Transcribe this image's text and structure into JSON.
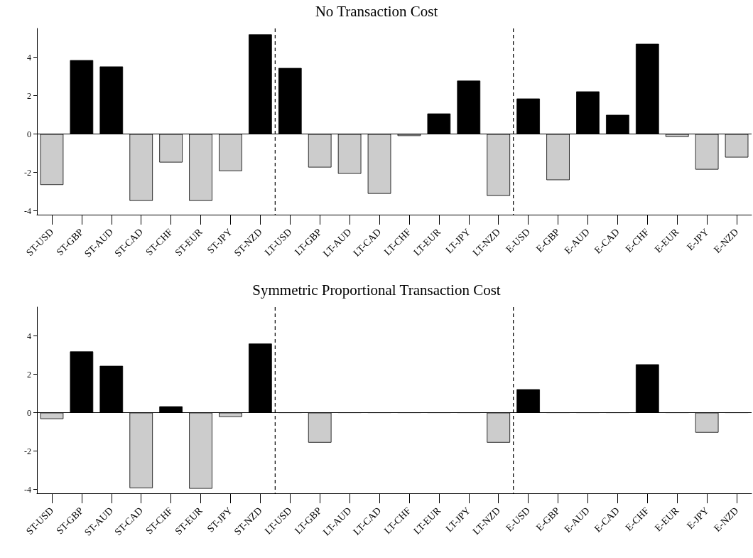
{
  "chart_data": [
    {
      "type": "bar",
      "title": "No Transaction Cost",
      "categories": [
        "ST-USD",
        "ST-GBP",
        "ST-AUD",
        "ST-CAD",
        "ST-CHF",
        "ST-EUR",
        "ST-JPY",
        "ST-NZD",
        "LT-USD",
        "LT-GBP",
        "LT-AUD",
        "LT-CAD",
        "LT-CHF",
        "LT-EUR",
        "LT-JPY",
        "LT-NZD",
        "E-USD",
        "E-GBP",
        "E-AUD",
        "E-CAD",
        "E-CHF",
        "E-EUR",
        "E-JPY",
        "E-NZD"
      ],
      "values": [
        -2.65,
        3.85,
        3.52,
        -3.48,
        -1.48,
        -3.48,
        -1.93,
        5.19,
        3.44,
        -1.74,
        -2.07,
        -3.11,
        -0.1,
        1.07,
        2.78,
        -3.22,
        1.85,
        -2.4,
        2.22,
        1.0,
        4.7,
        -0.15,
        -1.85,
        -1.22
      ],
      "colors": [
        "#cccccc",
        "#000000",
        "#000000",
        "#cccccc",
        "#cccccc",
        "#cccccc",
        "#cccccc",
        "#000000",
        "#000000",
        "#cccccc",
        "#cccccc",
        "#cccccc",
        "#cccccc",
        "#000000",
        "#000000",
        "#cccccc",
        "#000000",
        "#cccccc",
        "#000000",
        "#000000",
        "#000000",
        "#cccccc",
        "#cccccc",
        "#cccccc"
      ],
      "ylim": [
        -4.2,
        5.5
      ],
      "yticks": [
        -4,
        -2,
        0,
        2,
        4
      ],
      "grid": false,
      "ref_lines": [
        {
          "axis": "y",
          "value": 0,
          "line_style": "solid",
          "color": "#000000"
        }
      ]
    },
    {
      "type": "bar",
      "title": "Symmetric Proportional Transaction Cost",
      "categories": [
        "ST-USD",
        "ST-GBP",
        "ST-AUD",
        "ST-CAD",
        "ST-CHF",
        "ST-EUR",
        "ST-JPY",
        "ST-NZD",
        "LT-USD",
        "LT-GBP",
        "LT-AUD",
        "LT-CAD",
        "LT-CHF",
        "LT-EUR",
        "LT-JPY",
        "LT-NZD",
        "E-USD",
        "E-GBP",
        "E-AUD",
        "E-CAD",
        "E-CHF",
        "E-EUR",
        "E-JPY",
        "E-NZD"
      ],
      "values": [
        -0.33,
        3.19,
        2.44,
        -3.93,
        0.33,
        -3.96,
        -0.22,
        3.6,
        0,
        -1.56,
        0,
        0,
        0,
        0,
        0,
        -1.56,
        1.22,
        0,
        0,
        0,
        2.52,
        0,
        -1.04,
        0
      ],
      "colors": [
        "#cccccc",
        "#000000",
        "#000000",
        "#cccccc",
        "#000000",
        "#cccccc",
        "#cccccc",
        "#000000",
        "#000000",
        "#cccccc",
        "#000000",
        "#000000",
        "#000000",
        "#000000",
        "#000000",
        "#cccccc",
        "#000000",
        "#000000",
        "#000000",
        "#000000",
        "#000000",
        "#000000",
        "#cccccc",
        "#000000"
      ],
      "ylim": [
        -4.2,
        5.5
      ],
      "yticks": [
        -4,
        -2,
        0,
        2,
        4
      ],
      "grid": false,
      "ref_lines": [
        {
          "axis": "y",
          "value": 0,
          "line_style": "solid",
          "color": "#000000"
        }
      ]
    }
  ]
}
